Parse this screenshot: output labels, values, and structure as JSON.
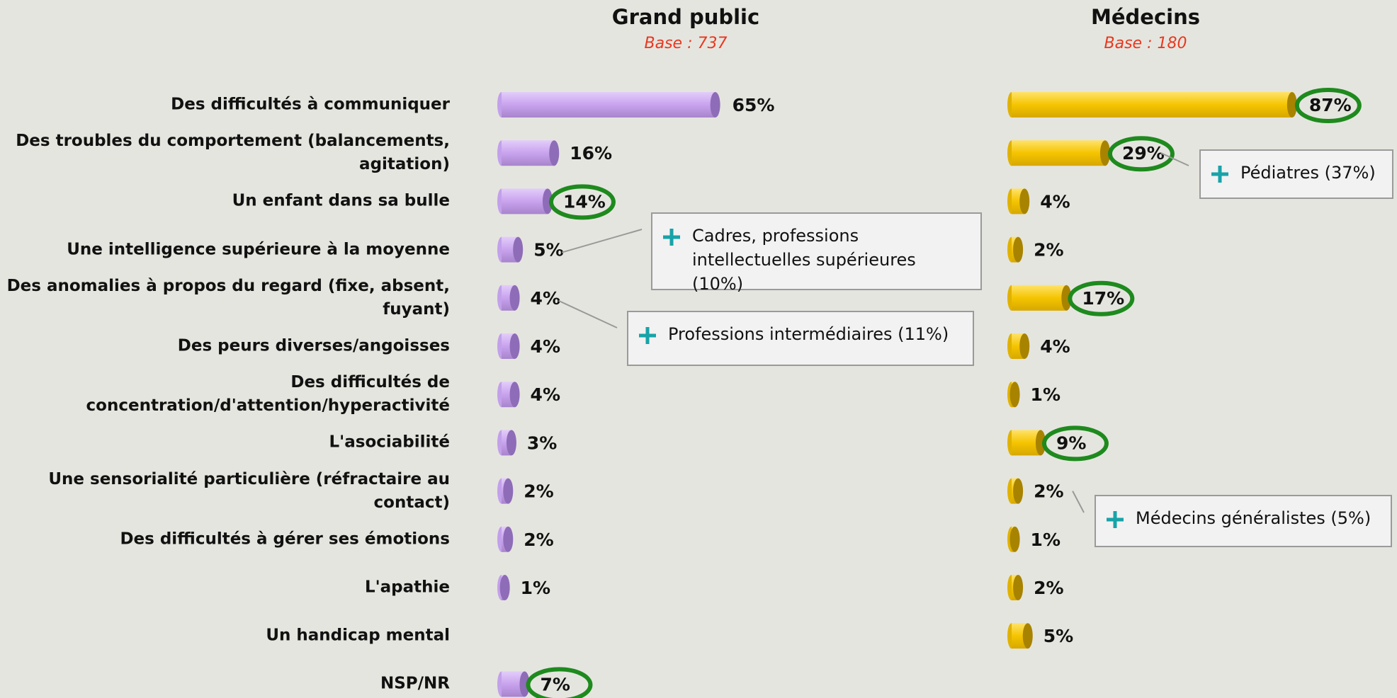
{
  "chart_data": {
    "type": "bar",
    "orientation": "horizontal",
    "categories": [
      "Des difficultés à communiquer",
      "Des troubles du comportement (balancements, agitation)",
      "Un enfant dans sa bulle",
      "Une intelligence supérieure à la moyenne",
      "Des anomalies à propos du regard (fixe, absent, fuyant)",
      "Des peurs diverses/angoisses",
      "Des difficultés de concentration/d'attention/hyperactivité",
      "L'asociabilité",
      "Une sensorialité particulière (réfractaire au contact)",
      "Des difficultés à gérer ses émotions",
      "L'apathie",
      "Un handicap mental",
      "NSP/NR"
    ],
    "xlim": [
      0,
      100
    ],
    "series": [
      {
        "name": "Grand public",
        "subtitle": "Base : 737",
        "color": "#c9a3ee",
        "values": [
          65,
          16,
          14,
          5,
          4,
          4,
          4,
          3,
          2,
          2,
          1,
          null,
          7
        ],
        "value_labels": [
          "65%",
          "16%",
          "14%",
          "5%",
          "4%",
          "4%",
          "4%",
          "3%",
          "2%",
          "2%",
          "1%",
          null,
          "7%"
        ],
        "highlighted": [
          2,
          12
        ]
      },
      {
        "name": "Médecins",
        "subtitle": "Base : 180",
        "color": "#f5c400",
        "values": [
          87,
          29,
          4,
          2,
          17,
          4,
          1,
          9,
          2,
          1,
          2,
          5,
          null
        ],
        "value_labels": [
          "87%",
          "29%",
          "4%",
          "2%",
          "17%",
          "4%",
          "1%",
          "9%",
          "2%",
          "1%",
          "2%",
          "5%",
          null
        ],
        "highlighted": [
          0,
          1,
          4,
          7
        ]
      }
    ],
    "annotations": [
      {
        "text": "Cadres, professions intellectuelles supérieures (10%)",
        "series": 0,
        "index": 3
      },
      {
        "text": "Professions intermédiaires (11%)",
        "series": 0,
        "index": 4
      },
      {
        "text": "Pédiatres (37%)",
        "series": 1,
        "index": 1
      },
      {
        "text": "Médecins généralistes (5%)",
        "series": 1,
        "index": 8
      }
    ]
  }
}
